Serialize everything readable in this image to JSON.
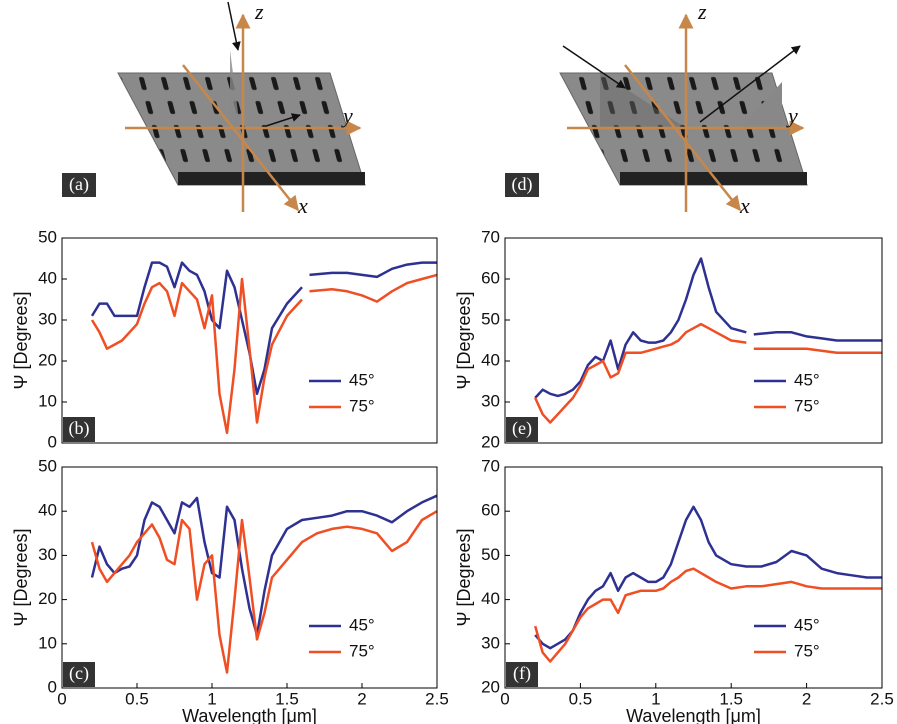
{
  "diagrams": [
    {
      "label": "(a)",
      "axes": {
        "z": "z",
        "y": "y",
        "x": "x"
      }
    },
    {
      "label": "(d)",
      "axes": {
        "z": "z",
        "y": "y",
        "x": "x"
      }
    }
  ],
  "chart_data": [
    {
      "type": "line",
      "label": "(b)",
      "ylabel": "Ψ [Degrees]",
      "x": [
        0.2,
        0.25,
        0.3,
        0.35,
        0.4,
        0.45,
        0.5,
        0.55,
        0.6,
        0.65,
        0.7,
        0.75,
        0.8,
        0.85,
        0.9,
        0.95,
        1.0,
        1.05,
        1.1,
        1.15,
        1.2,
        1.25,
        1.3,
        1.35,
        1.4,
        1.5,
        1.6,
        1.62,
        1.65,
        1.8,
        1.9,
        2.0,
        2.1,
        2.2,
        2.3,
        2.4,
        2.5
      ],
      "series": [
        {
          "name": "45°",
          "color": "#2e3192",
          "values": [
            31,
            34,
            34,
            31,
            31,
            31,
            31,
            38,
            44,
            44,
            43,
            38,
            44,
            42,
            41,
            37,
            30,
            28,
            42,
            38,
            30,
            22,
            12,
            18,
            28,
            34,
            38,
            null,
            41,
            41.5,
            41.5,
            41,
            40.5,
            42.5,
            43.5,
            44,
            44
          ]
        },
        {
          "name": "75°",
          "color": "#f04e23",
          "values": [
            30,
            27,
            23,
            24,
            25,
            27,
            29,
            34,
            38,
            39,
            37,
            31,
            39,
            37,
            35,
            28,
            36,
            12,
            2.5,
            18,
            40,
            23,
            5,
            16,
            24,
            31,
            35,
            null,
            37,
            37.5,
            37,
            36,
            34.5,
            37,
            39,
            40,
            41
          ]
        }
      ],
      "xlim": [
        0,
        2.5
      ],
      "ylim": [
        0,
        50
      ],
      "yticks": [
        0,
        10,
        20,
        30,
        40,
        50
      ]
    },
    {
      "type": "line",
      "label": "(c)",
      "ylabel": "Ψ [Degrees]",
      "xlabel": "Wavelength [μm]",
      "x": [
        0.2,
        0.25,
        0.3,
        0.35,
        0.4,
        0.45,
        0.5,
        0.55,
        0.6,
        0.65,
        0.7,
        0.75,
        0.8,
        0.85,
        0.9,
        0.95,
        1.0,
        1.05,
        1.1,
        1.15,
        1.2,
        1.25,
        1.3,
        1.35,
        1.4,
        1.5,
        1.6,
        1.7,
        1.8,
        1.9,
        2.0,
        2.1,
        2.2,
        2.3,
        2.4,
        2.5
      ],
      "series": [
        {
          "name": "45°",
          "color": "#2e3192",
          "values": [
            25,
            32,
            28,
            26,
            27,
            27.5,
            30,
            38,
            42,
            41,
            38,
            35,
            42,
            41,
            43,
            33,
            26,
            25,
            41,
            38,
            27,
            18,
            12,
            22,
            30,
            36,
            38,
            38.5,
            39,
            40,
            40,
            39,
            37.5,
            40,
            42,
            43.5
          ]
        },
        {
          "name": "75°",
          "color": "#f04e23",
          "values": [
            33,
            27,
            24,
            26,
            28,
            30,
            33,
            35,
            37,
            34,
            29,
            28,
            38,
            36,
            20,
            28,
            30,
            12,
            3.5,
            20,
            38,
            25,
            11,
            17,
            25,
            29,
            33,
            35,
            36,
            36.5,
            36,
            35,
            31,
            33,
            38,
            40
          ]
        }
      ],
      "xlim": [
        0,
        2.5
      ],
      "ylim": [
        0,
        50
      ],
      "yticks": [
        0,
        10,
        20,
        30,
        40,
        50
      ],
      "xticks": [
        0,
        0.5,
        1,
        1.5,
        2,
        2.5
      ]
    },
    {
      "type": "line",
      "label": "(e)",
      "ylabel": "Ψ [Degrees]",
      "x": [
        0.2,
        0.25,
        0.3,
        0.35,
        0.4,
        0.45,
        0.5,
        0.55,
        0.6,
        0.65,
        0.7,
        0.75,
        0.8,
        0.85,
        0.9,
        0.95,
        1.0,
        1.05,
        1.1,
        1.15,
        1.2,
        1.25,
        1.3,
        1.35,
        1.4,
        1.5,
        1.6,
        1.62,
        1.65,
        1.8,
        1.9,
        2.0,
        2.1,
        2.2,
        2.3,
        2.4,
        2.5
      ],
      "series": [
        {
          "name": "45°",
          "color": "#2e3192",
          "values": [
            31,
            33,
            32,
            31.5,
            32,
            33,
            35,
            39,
            41,
            40,
            45,
            38,
            44,
            47,
            45,
            44.5,
            44.5,
            45,
            47,
            50,
            55,
            61,
            65,
            58,
            52,
            48,
            47,
            null,
            46.5,
            47,
            47,
            46,
            45.5,
            45,
            45,
            45,
            45
          ]
        },
        {
          "name": "75°",
          "color": "#f04e23",
          "values": [
            31,
            27,
            25,
            27,
            29,
            31,
            34,
            38,
            39,
            40,
            36,
            37,
            42,
            42,
            42,
            42.5,
            43,
            43.5,
            44,
            45,
            47,
            48,
            49,
            48,
            47,
            45,
            44.5,
            null,
            43,
            43,
            43,
            43,
            42.5,
            42,
            42,
            42,
            42
          ]
        }
      ],
      "xlim": [
        0,
        2.5
      ],
      "ylim": [
        20,
        70
      ],
      "yticks": [
        20,
        30,
        40,
        50,
        60,
        70
      ]
    },
    {
      "type": "line",
      "label": "(f)",
      "ylabel": "Ψ [Degrees]",
      "xlabel": "Wavelength [μm]",
      "x": [
        0.2,
        0.25,
        0.3,
        0.35,
        0.4,
        0.45,
        0.5,
        0.55,
        0.6,
        0.65,
        0.7,
        0.75,
        0.8,
        0.85,
        0.9,
        0.95,
        1.0,
        1.05,
        1.1,
        1.15,
        1.2,
        1.25,
        1.3,
        1.35,
        1.4,
        1.5,
        1.6,
        1.7,
        1.8,
        1.9,
        2.0,
        2.1,
        2.2,
        2.3,
        2.4,
        2.5
      ],
      "series": [
        {
          "name": "45°",
          "color": "#2e3192",
          "values": [
            32,
            30,
            29,
            30,
            31,
            33,
            37,
            40,
            42,
            43,
            46,
            42,
            45,
            46,
            45,
            44,
            44,
            45,
            48,
            53,
            58,
            61,
            58,
            53,
            50,
            48,
            47.5,
            47.5,
            48.5,
            51,
            50,
            47,
            46,
            45.5,
            45,
            45
          ]
        },
        {
          "name": "75°",
          "color": "#f04e23",
          "values": [
            34,
            28,
            26,
            28,
            30,
            33,
            36,
            38,
            39,
            40,
            40,
            37,
            41,
            41.5,
            42,
            42,
            42,
            42.5,
            44,
            45,
            46.5,
            47,
            46,
            45,
            44,
            42.5,
            43,
            43,
            43.5,
            44,
            43,
            42.5,
            42.5,
            42.5,
            42.5,
            42.5
          ]
        }
      ],
      "xlim": [
        0,
        2.5
      ],
      "ylim": [
        20,
        70
      ],
      "yticks": [
        20,
        30,
        40,
        50,
        60,
        70
      ],
      "xticks": [
        0,
        0.5,
        1,
        1.5,
        2,
        2.5
      ]
    }
  ]
}
